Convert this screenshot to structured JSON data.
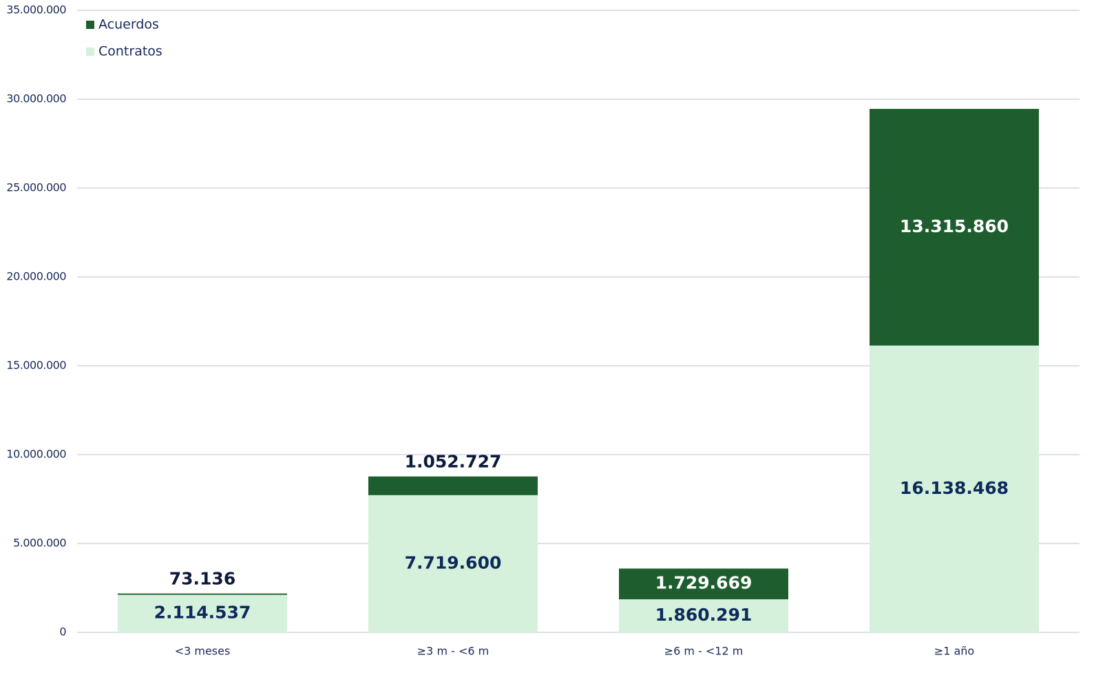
{
  "chart_data": {
    "type": "stacked_bar",
    "categories": [
      "<3 meses",
      "≥3 m - <6 m",
      "≥6 m - <12 m",
      "≥1 año"
    ],
    "series": [
      {
        "name": "Contratos",
        "color": "#d5f1dc",
        "values": [
          2114537,
          7719600,
          1860291,
          16138468
        ],
        "value_labels": [
          "2.114.537",
          "7.719.600",
          "1.860.291",
          "16.138.468"
        ]
      },
      {
        "name": "Acuerdos",
        "color": "#1e5e2e",
        "values": [
          73136,
          1052727,
          1729669,
          13315860
        ],
        "value_labels": [
          "73.136",
          "1.052.727",
          "1.729.669",
          "13.315.860"
        ]
      }
    ],
    "ylim": [
      0,
      35000000
    ],
    "yticks": [
      0,
      {
        "value": 5000000,
        "label": "5.000.000"
      },
      {
        "value": 10000000,
        "label": "10.000.000"
      },
      {
        "value": 15000000,
        "label": "15.000.000"
      },
      {
        "value": 20000000,
        "label": "20.000.000"
      },
      {
        "value": 25000000,
        "label": "25.000.000"
      },
      {
        "value": 30000000,
        "label": "30.000.000"
      },
      {
        "value": 35000000,
        "label": "35.000.000"
      }
    ],
    "grid": true,
    "legend": "top-left"
  }
}
